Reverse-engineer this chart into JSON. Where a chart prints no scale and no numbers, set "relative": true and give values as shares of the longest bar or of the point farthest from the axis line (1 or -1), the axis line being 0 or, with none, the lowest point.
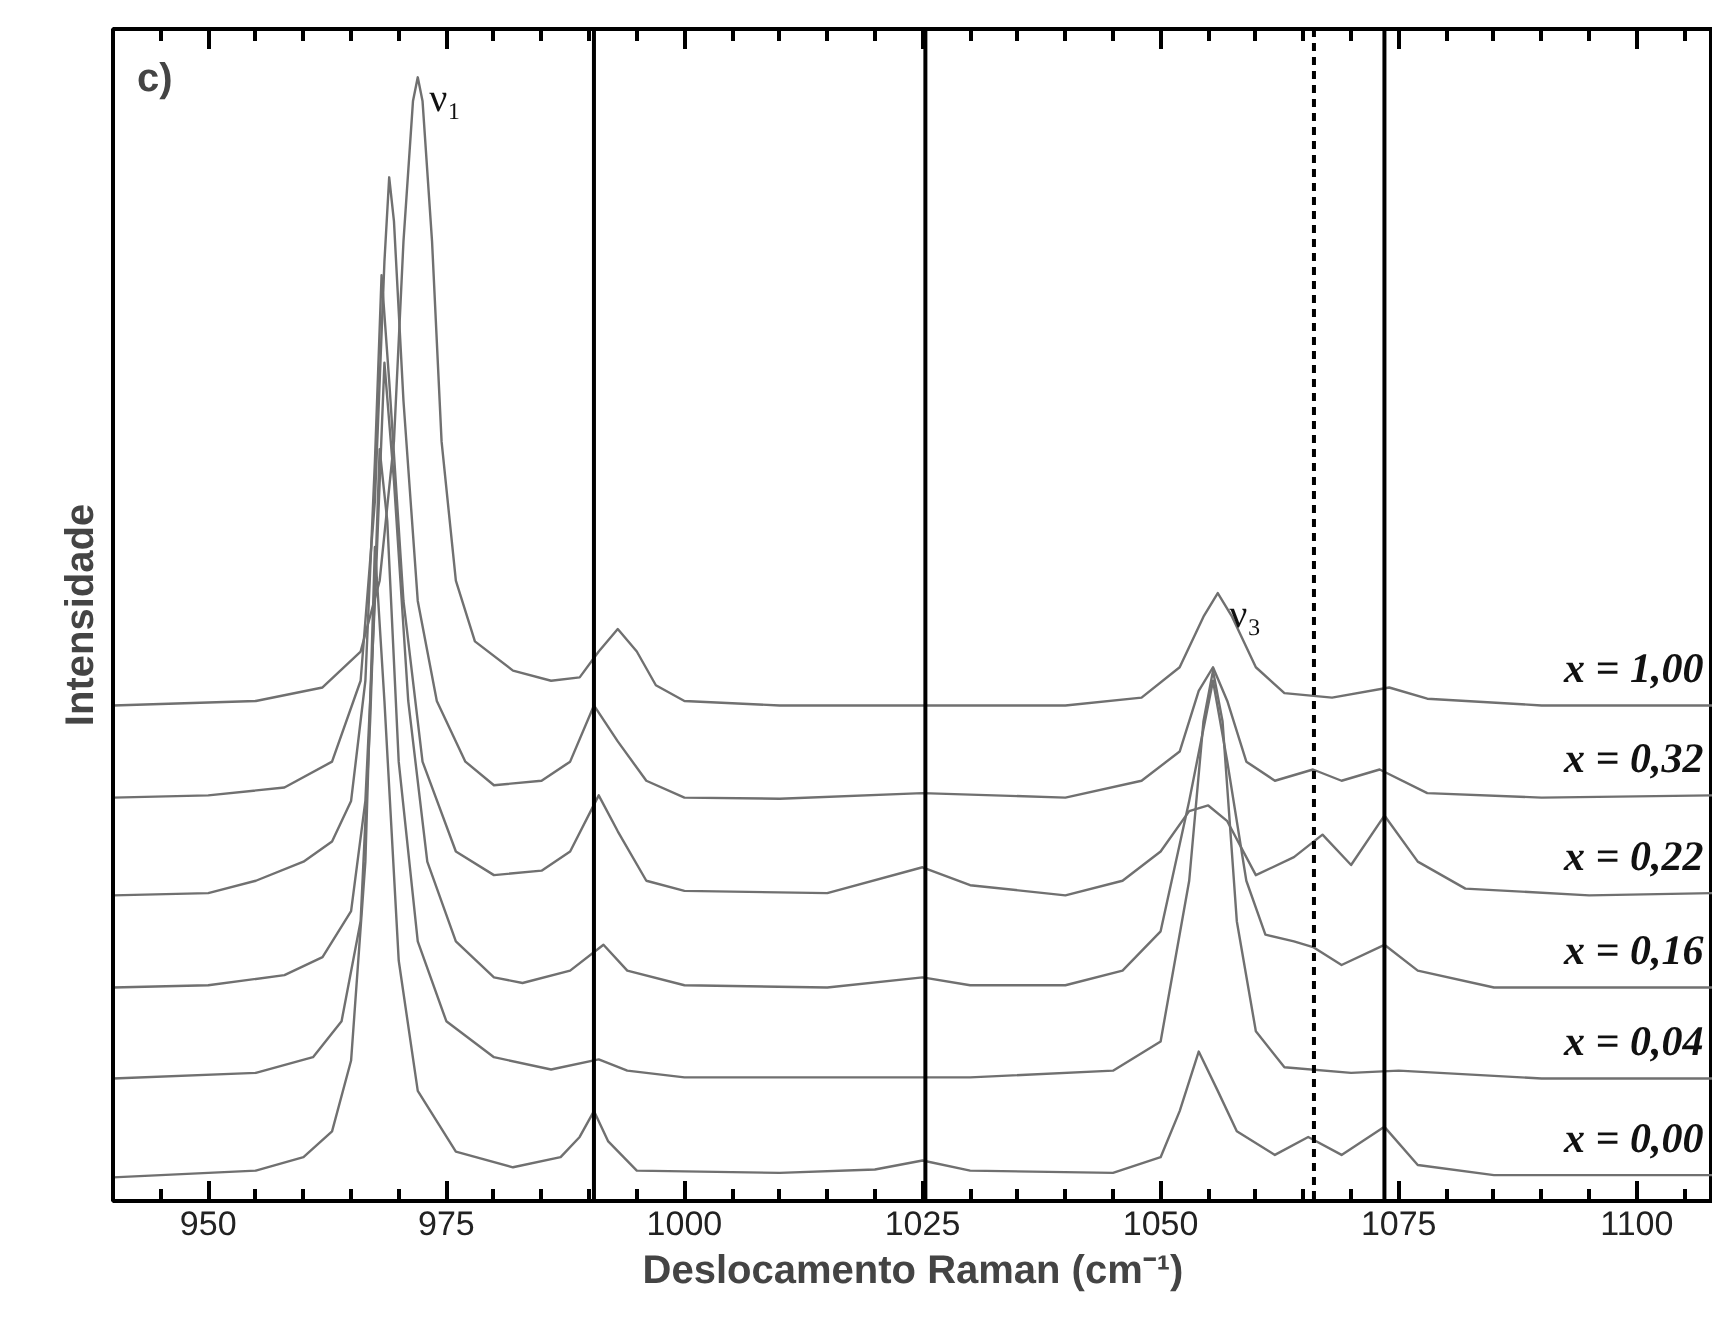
{
  "chart_data": {
    "type": "line",
    "relative": true,
    "xlabel": "Deslocamento Raman (cm⁻¹)",
    "ylabel": "Intensidade",
    "xlim": [
      940,
      1108
    ],
    "xticks": [
      950,
      975,
      1000,
      1025,
      1050,
      1075,
      1100
    ],
    "grid": false,
    "annotations": [
      "c)",
      {
        "text": "ν₁",
        "x": 972,
        "y": 1.0
      },
      {
        "text": "ν₃",
        "x": 1056,
        "y": 0.541
      }
    ],
    "ref_lines": [
      {
        "axis": "x",
        "value": 990.5,
        "color": "#000000",
        "line_style": "solid"
      },
      {
        "axis": "x",
        "value": 1025.3,
        "color": "#000000",
        "line_style": "solid"
      },
      {
        "axis": "x",
        "value": 1066.1,
        "color": "#000000",
        "line_style": "dashed"
      },
      {
        "axis": "x",
        "value": 1073.5,
        "color": "#000000",
        "line_style": "solid"
      }
    ],
    "series": [
      {
        "name": "x = 1,00",
        "color": "#707070",
        "x": [
          940,
          955,
          962,
          966,
          968,
          969.5,
          970.5,
          971.5,
          972,
          972.5,
          973.5,
          974.5,
          976,
          978,
          982,
          986,
          989,
          991,
          993,
          995,
          997,
          1000,
          1010,
          1025,
          1040,
          1048,
          1052,
          1054.5,
          1056,
          1057.5,
          1060,
          1063,
          1068,
          1074,
          1078,
          1090,
          1108
        ],
        "values": [
          0.441,
          0.445,
          0.457,
          0.489,
          0.552,
          0.676,
          0.854,
          0.979,
          1.0,
          0.979,
          0.854,
          0.676,
          0.552,
          0.498,
          0.472,
          0.463,
          0.466,
          0.489,
          0.509,
          0.489,
          0.459,
          0.445,
          0.441,
          0.441,
          0.441,
          0.448,
          0.475,
          0.52,
          0.541,
          0.52,
          0.475,
          0.452,
          0.448,
          0.457,
          0.447,
          0.441,
          0.441
        ]
      },
      {
        "name": "x = 0,32",
        "color": "#707070",
        "x": [
          940,
          950,
          958,
          963,
          966,
          967.5,
          968.5,
          969,
          969.5,
          970.5,
          972,
          974,
          977,
          980,
          985,
          988,
          990.5,
          993,
          996,
          1000,
          1010,
          1025,
          1040,
          1048,
          1052,
          1054,
          1055.5,
          1057,
          1059,
          1062,
          1066,
          1069,
          1073,
          1078,
          1090,
          1108
        ],
        "values": [
          0.359,
          0.361,
          0.368,
          0.391,
          0.463,
          0.623,
          0.836,
          0.911,
          0.872,
          0.712,
          0.534,
          0.445,
          0.391,
          0.37,
          0.374,
          0.391,
          0.441,
          0.409,
          0.374,
          0.359,
          0.358,
          0.363,
          0.359,
          0.374,
          0.4,
          0.454,
          0.475,
          0.445,
          0.391,
          0.374,
          0.384,
          0.374,
          0.384,
          0.363,
          0.359,
          0.361
        ]
      },
      {
        "name": "x = 0,22",
        "color": "#707070",
        "x": [
          940,
          950,
          955,
          960,
          963,
          965,
          966.5,
          967.5,
          968.2,
          969,
          970.5,
          972.5,
          976,
          980,
          985,
          988,
          991,
          993,
          996,
          1000,
          1015,
          1025,
          1030,
          1040,
          1046,
          1050,
          1053,
          1055,
          1057,
          1060,
          1064,
          1067,
          1070,
          1073.5,
          1077,
          1082,
          1095,
          1108
        ],
        "values": [
          0.272,
          0.274,
          0.285,
          0.302,
          0.32,
          0.356,
          0.463,
          0.658,
          0.824,
          0.73,
          0.534,
          0.391,
          0.311,
          0.29,
          0.294,
          0.311,
          0.361,
          0.329,
          0.285,
          0.276,
          0.274,
          0.297,
          0.281,
          0.272,
          0.285,
          0.311,
          0.347,
          0.352,
          0.338,
          0.29,
          0.306,
          0.326,
          0.299,
          0.343,
          0.302,
          0.278,
          0.272,
          0.274
        ]
      },
      {
        "name": "x = 0,16",
        "color": "#707070",
        "x": [
          940,
          950,
          958,
          962,
          965,
          966.5,
          967.5,
          968.5,
          969.5,
          971,
          973,
          976,
          980,
          983,
          988,
          991.5,
          994,
          1000,
          1015,
          1025,
          1030,
          1040,
          1046,
          1050,
          1053,
          1055.5,
          1057,
          1059,
          1061,
          1064,
          1066,
          1069,
          1073.5,
          1077,
          1085,
          1108
        ],
        "values": [
          0.19,
          0.192,
          0.201,
          0.217,
          0.258,
          0.356,
          0.534,
          0.746,
          0.641,
          0.445,
          0.302,
          0.231,
          0.199,
          0.194,
          0.205,
          0.228,
          0.205,
          0.192,
          0.19,
          0.199,
          0.192,
          0.192,
          0.205,
          0.24,
          0.356,
          0.463,
          0.391,
          0.285,
          0.237,
          0.231,
          0.226,
          0.21,
          0.228,
          0.205,
          0.19,
          0.19
        ]
      },
      {
        "name": "x = 0,04",
        "color": "#707070",
        "x": [
          940,
          955,
          961,
          964,
          966,
          967,
          968,
          968.8,
          970,
          972,
          975,
          980,
          986,
          991,
          994,
          1000,
          1030,
          1045,
          1050,
          1053,
          1054.5,
          1055.5,
          1056.5,
          1058,
          1060,
          1063,
          1070,
          1075,
          1090,
          1108
        ],
        "values": [
          0.109,
          0.114,
          0.128,
          0.16,
          0.249,
          0.427,
          0.669,
          0.605,
          0.391,
          0.231,
          0.16,
          0.128,
          0.117,
          0.126,
          0.116,
          0.11,
          0.11,
          0.116,
          0.142,
          0.285,
          0.427,
          0.472,
          0.427,
          0.249,
          0.151,
          0.119,
          0.114,
          0.116,
          0.109,
          0.109
        ]
      },
      {
        "name": "x = 0,00",
        "color": "#707070",
        "x": [
          940,
          955,
          960,
          963,
          965,
          966.5,
          967.5,
          968.5,
          970,
          972,
          976,
          982,
          987,
          989,
          990.5,
          992,
          995,
          1010,
          1020,
          1025,
          1030,
          1045,
          1050,
          1052,
          1054,
          1056,
          1058,
          1062,
          1065.5,
          1069,
          1073.5,
          1077,
          1085,
          1108
        ],
        "values": [
          0.021,
          0.027,
          0.039,
          0.062,
          0.125,
          0.302,
          0.582,
          0.445,
          0.214,
          0.098,
          0.044,
          0.03,
          0.039,
          0.057,
          0.08,
          0.053,
          0.027,
          0.025,
          0.028,
          0.036,
          0.027,
          0.025,
          0.039,
          0.08,
          0.133,
          0.098,
          0.062,
          0.041,
          0.057,
          0.041,
          0.066,
          0.032,
          0.023,
          0.023
        ]
      }
    ]
  }
}
